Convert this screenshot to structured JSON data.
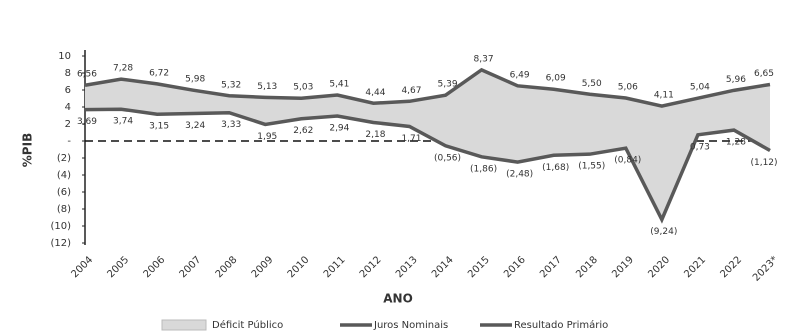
{
  "chart_data": {
    "type": "area-between-lines",
    "x_label": "ANO",
    "y_label": "%PIB",
    "categories": [
      "2004",
      "2005",
      "2006",
      "2007",
      "2008",
      "2009",
      "2010",
      "2011",
      "2012",
      "2013",
      "2014",
      "2015",
      "2016",
      "2017",
      "2018",
      "2019",
      "2020",
      "2021",
      "2022",
      "2023*"
    ],
    "area": {
      "name": "Déficit Público",
      "color": "#d9d9d9"
    },
    "series": [
      {
        "name": "Juros Nominais",
        "color": "#595959",
        "values": [
          6.56,
          7.28,
          6.72,
          5.98,
          5.32,
          5.13,
          5.03,
          5.41,
          4.44,
          4.67,
          5.39,
          8.37,
          6.49,
          6.09,
          5.5,
          5.06,
          4.11,
          5.04,
          5.96,
          6.65
        ],
        "value_labels": [
          "6,56",
          "7,28",
          "6,72",
          "5,98",
          "5,32",
          "5,13",
          "5,03",
          "5,41",
          "4,44",
          "4,67",
          "5,39",
          "8,37",
          "6,49",
          "6,09",
          "5,50",
          "5,06",
          "4,11",
          "5,04",
          "5,96",
          "6,65"
        ]
      },
      {
        "name": "Resultado Primário",
        "color": "#595959",
        "values": [
          3.69,
          3.74,
          3.15,
          3.24,
          3.33,
          1.95,
          2.62,
          2.94,
          2.18,
          1.71,
          -0.56,
          -1.86,
          -2.48,
          -1.68,
          -1.55,
          -0.84,
          -9.24,
          0.73,
          1.28,
          -1.12
        ],
        "value_labels": [
          "3,69",
          "3,74",
          "3,15",
          "3,24",
          "3,33",
          "1,95",
          "2,62",
          "2,94",
          "2,18",
          "1,71",
          "(0,56)",
          "(1,86)",
          "(2,48)",
          "(1,68)",
          "(1,55)",
          "(0,84)",
          "(9,24)",
          "0,73",
          "1,28",
          "(1,12)"
        ]
      }
    ],
    "ylim": [
      -12,
      10
    ],
    "yticks": [
      10,
      8,
      6,
      4,
      2,
      {
        "value": 0,
        "label": "-"
      },
      {
        "value": -2,
        "label": "(2)"
      },
      {
        "value": -4,
        "label": "(4)"
      },
      {
        "value": -6,
        "label": "(6)"
      },
      {
        "value": -8,
        "label": "(8)"
      },
      {
        "value": -10,
        "label": "(10)"
      },
      {
        "value": -12,
        "label": "(12)"
      }
    ],
    "zero_line": true
  }
}
